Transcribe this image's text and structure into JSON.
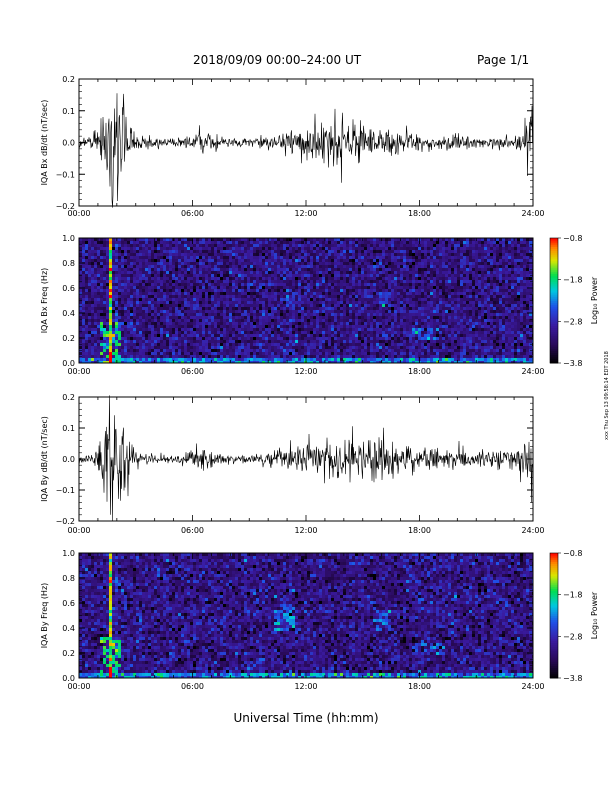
{
  "header": {
    "title": "2018/09/09  00:00–24:00 UT",
    "page": "Page 1/1"
  },
  "side_note": "xxx Thu Sep 13 09:58:14 EDT 2018",
  "x_axis_title": "Universal Time (hh:mm)",
  "colorbar": {
    "label": "Log₁₀ Power",
    "ticks": [
      "−0.8",
      "−1.8",
      "−2.8",
      "−3.8"
    ],
    "range": [
      -3.8,
      -0.8
    ]
  },
  "chart_data": [
    {
      "type": "line",
      "ylabel": "IQA Bx dB/dt (nT/sec)",
      "xlim": [
        0,
        24
      ],
      "ylim": [
        -0.2,
        0.2
      ],
      "x_tick_labels": [
        "00:00",
        "06:00",
        "12:00",
        "18:00",
        "24:00"
      ],
      "y_tick_labels": [
        "0.2",
        "0.1",
        "0.0",
        "−0.1",
        "−0.2"
      ],
      "y_ticks": [
        0.2,
        0.1,
        0.0,
        -0.1,
        -0.2
      ],
      "activity_envelope": {
        "hours": [
          0,
          0.4,
          0.8,
          1.2,
          1.5,
          1.7,
          2.0,
          2.3,
          2.6,
          3.0,
          4,
          5,
          6,
          6.5,
          7,
          8,
          9,
          10,
          10.8,
          11.3,
          12,
          13,
          14,
          15,
          16,
          17,
          18,
          19,
          20,
          21,
          22,
          23,
          23.5,
          24
        ],
        "amplitude": [
          0.02,
          0.015,
          0.04,
          0.07,
          0.25,
          0.25,
          0.25,
          0.2,
          0.07,
          0.03,
          0.02,
          0.015,
          0.02,
          0.06,
          0.03,
          0.015,
          0.015,
          0.02,
          0.03,
          0.05,
          0.06,
          0.07,
          0.08,
          0.07,
          0.05,
          0.04,
          0.03,
          0.02,
          0.03,
          0.02,
          0.02,
          0.02,
          0.05,
          0.15
        ]
      }
    },
    {
      "type": "heatmap",
      "ylabel": "IQA Bx Freq (Hz)",
      "xlim": [
        0,
        24
      ],
      "ylim": [
        0.0,
        1.0
      ],
      "x_tick_labels": [
        "00:00",
        "06:00",
        "12:00",
        "18:00",
        "24:00"
      ],
      "y_tick_labels": [
        "1.0",
        "0.8",
        "0.6",
        "0.4",
        "0.2",
        "0.0"
      ],
      "y_ticks": [
        1.0,
        0.8,
        0.6,
        0.4,
        0.2,
        0.0
      ],
      "value_range": [
        -3.8,
        -0.8
      ],
      "background_level": -3.1,
      "broadband_events": [
        {
          "hour": 1.6,
          "level": -1.0
        },
        {
          "hour": 1.9,
          "level": -2.5
        }
      ],
      "low_freq_band": {
        "max_freq": 0.05,
        "level": -2.4
      },
      "patches": [
        {
          "hour_start": 10.8,
          "hour_end": 11.4,
          "freq_start": 0.45,
          "freq_end": 0.6,
          "level": -2.7
        },
        {
          "hour_start": 15.8,
          "hour_end": 16.4,
          "freq_start": 0.45,
          "freq_end": 0.58,
          "level": -2.6
        },
        {
          "hour_start": 17.6,
          "hour_end": 19.0,
          "freq_start": 0.2,
          "freq_end": 0.3,
          "level": -2.5
        }
      ]
    },
    {
      "type": "line",
      "ylabel": "IQA By dB/dt (nT/sec)",
      "xlim": [
        0,
        24
      ],
      "ylim": [
        -0.2,
        0.2
      ],
      "x_tick_labels": [
        "00:00",
        "06:00",
        "12:00",
        "18:00",
        "24:00"
      ],
      "y_tick_labels": [
        "0.2",
        "0.1",
        "0.0",
        "−0.1",
        "−0.2"
      ],
      "y_ticks": [
        0.2,
        0.1,
        0.0,
        -0.1,
        -0.2
      ],
      "activity_envelope": {
        "hours": [
          0,
          0.4,
          0.8,
          1.2,
          1.5,
          1.7,
          2.0,
          2.3,
          2.6,
          3.0,
          4,
          5,
          6,
          6.5,
          7,
          8,
          9,
          10,
          10.8,
          11.3,
          12,
          13,
          14,
          15,
          16,
          17,
          18,
          19,
          20,
          21,
          22,
          23,
          23.5,
          24
        ],
        "amplitude": [
          0.02,
          0.015,
          0.04,
          0.08,
          0.25,
          0.25,
          0.25,
          0.22,
          0.08,
          0.03,
          0.02,
          0.015,
          0.03,
          0.06,
          0.03,
          0.015,
          0.015,
          0.03,
          0.04,
          0.05,
          0.06,
          0.07,
          0.09,
          0.08,
          0.07,
          0.05,
          0.05,
          0.04,
          0.04,
          0.03,
          0.03,
          0.04,
          0.08,
          0.14
        ]
      }
    },
    {
      "type": "heatmap",
      "ylabel": "IQA By Freq (Hz)",
      "xlim": [
        0,
        24
      ],
      "ylim": [
        0.0,
        1.0
      ],
      "x_tick_labels": [
        "00:00",
        "06:00",
        "12:00",
        "18:00",
        "24:00"
      ],
      "y_tick_labels": [
        "1.0",
        "0.8",
        "0.6",
        "0.4",
        "0.2",
        "0.0"
      ],
      "y_ticks": [
        1.0,
        0.8,
        0.6,
        0.4,
        0.2,
        0.0
      ],
      "value_range": [
        -3.8,
        -0.8
      ],
      "background_level": -3.1,
      "broadband_events": [
        {
          "hour": 1.6,
          "level": -1.0
        },
        {
          "hour": 1.9,
          "level": -2.5
        }
      ],
      "low_freq_band": {
        "max_freq": 0.06,
        "level": -2.3
      },
      "patches": [
        {
          "hour_start": 10.2,
          "hour_end": 11.3,
          "freq_start": 0.4,
          "freq_end": 0.6,
          "level": -2.3
        },
        {
          "hour_start": 15.7,
          "hour_end": 16.5,
          "freq_start": 0.4,
          "freq_end": 0.55,
          "level": -2.5
        },
        {
          "hour_start": 17.5,
          "hour_end": 19.2,
          "freq_start": 0.2,
          "freq_end": 0.3,
          "level": -2.5
        }
      ]
    }
  ]
}
